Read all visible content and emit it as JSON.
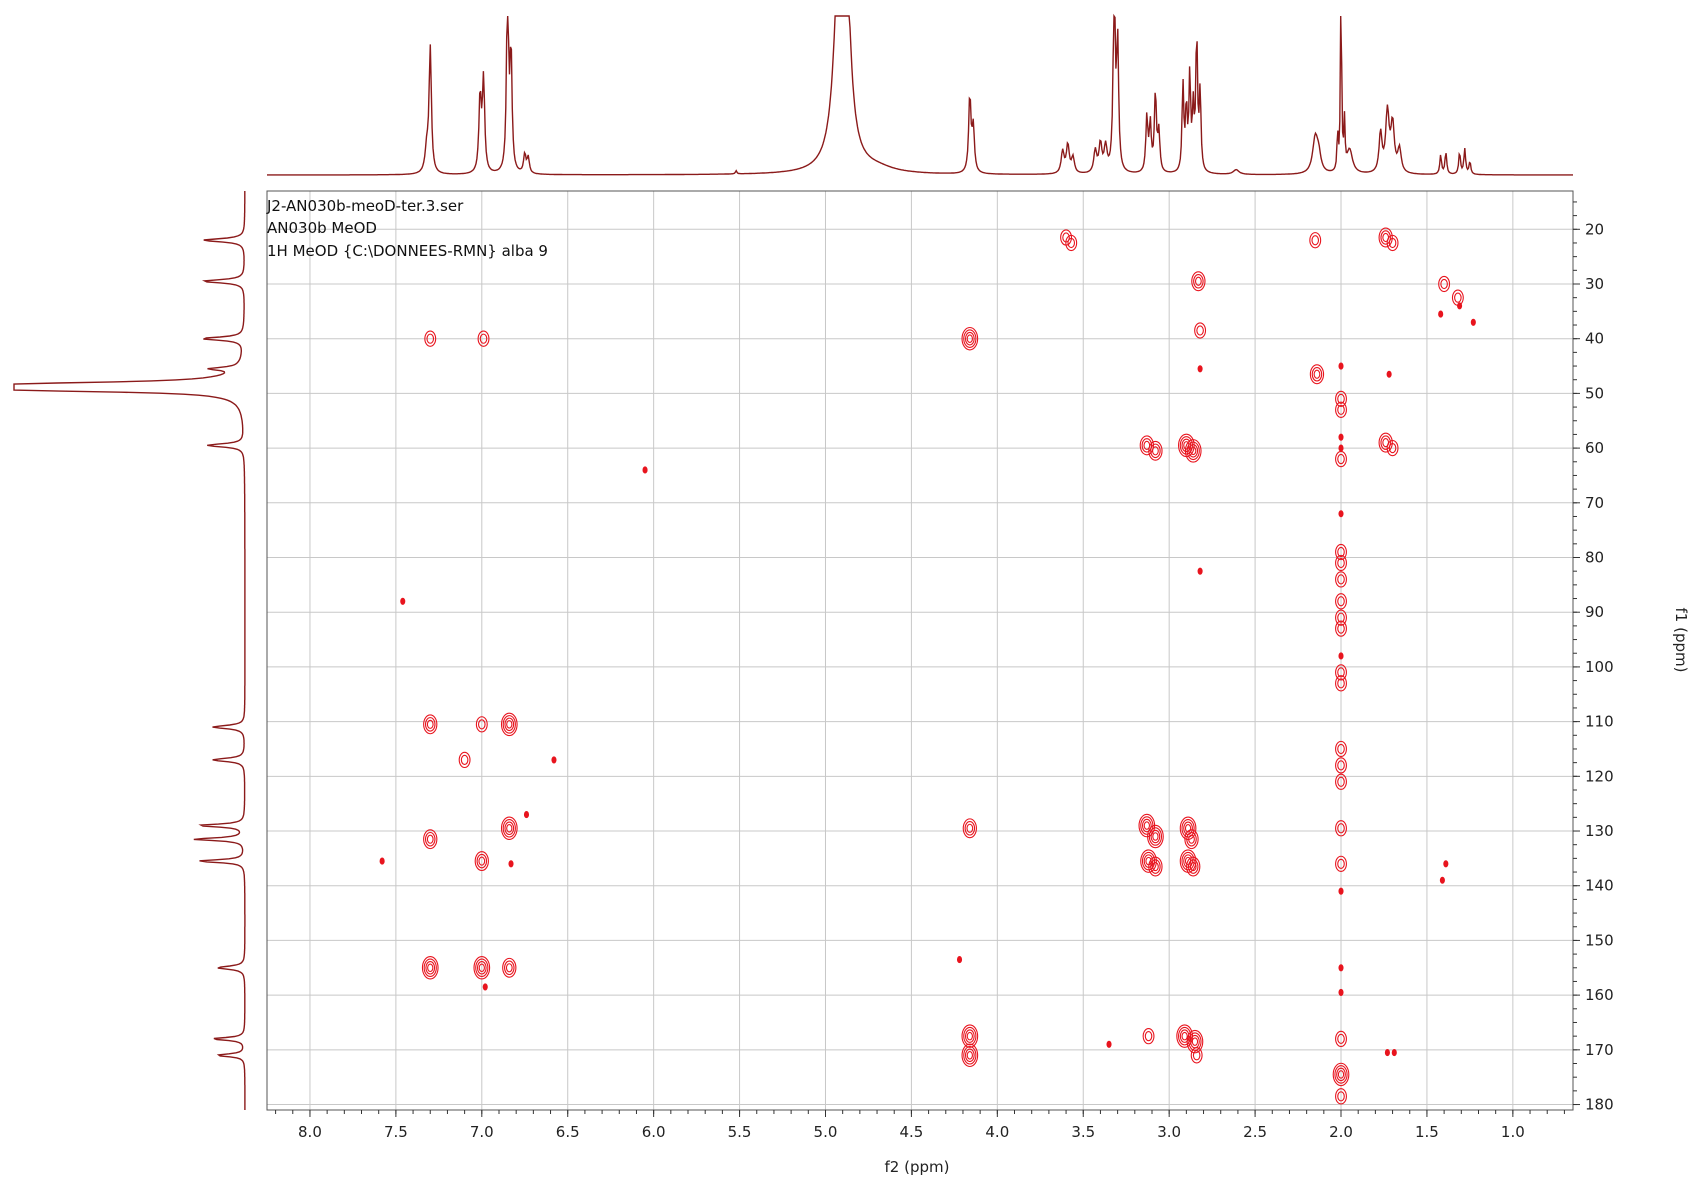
{
  "chart_data": {
    "type": "heatmap",
    "subtype": "2D NMR HMBC contour plot with 1D projections",
    "info_lines": [
      "J2-AN030b-meoD-ter.3.ser",
      "AN030b MeOD",
      "1H MeOD {C:\\DONNEES-RMN} alba 9"
    ],
    "xlabel": "f2 (ppm)",
    "ylabel": "f1 (ppm)",
    "xlim": [
      8.25,
      0.65
    ],
    "ylim": [
      13,
      181
    ],
    "x_ticks": [
      8.0,
      7.5,
      7.0,
      6.5,
      6.0,
      5.5,
      5.0,
      4.5,
      4.0,
      3.5,
      3.0,
      2.5,
      2.0,
      1.5,
      1.0
    ],
    "x_tick_labels": [
      "8.0",
      "7.5",
      "7.0",
      "6.5",
      "6.0",
      "5.5",
      "5.0",
      "4.5",
      "4.0",
      "3.5",
      "3.0",
      "2.5",
      "2.0",
      "1.5",
      "1.0"
    ],
    "y_ticks": [
      20,
      30,
      40,
      50,
      60,
      70,
      80,
      90,
      100,
      110,
      120,
      130,
      140,
      150,
      160,
      170,
      180
    ],
    "y_tick_labels": [
      "20",
      "30",
      "40",
      "50",
      "60",
      "70",
      "80",
      "90",
      "100",
      "110",
      "120",
      "130",
      "140",
      "150",
      "160",
      "170",
      "180"
    ],
    "grid": true,
    "colors": {
      "contour": "#e8141e",
      "projection": "#8b1a1a",
      "grid": "#c8c8c8",
      "frame": "#555555"
    },
    "cross_peaks": [
      {
        "x": 3.6,
        "y": 21.5,
        "i": 2
      },
      {
        "x": 3.57,
        "y": 22.5,
        "i": 2
      },
      {
        "x": 2.15,
        "y": 22,
        "i": 2
      },
      {
        "x": 1.74,
        "y": 21.5,
        "i": 3
      },
      {
        "x": 1.7,
        "y": 22.5,
        "i": 2
      },
      {
        "x": 2.83,
        "y": 29.5,
        "i": 3
      },
      {
        "x": 1.4,
        "y": 30,
        "i": 2
      },
      {
        "x": 1.32,
        "y": 32.5,
        "i": 2
      },
      {
        "x": 1.31,
        "y": 34,
        "i": 1
      },
      {
        "x": 1.42,
        "y": 35.5,
        "i": 1
      },
      {
        "x": 1.23,
        "y": 37,
        "i": 1
      },
      {
        "x": 2.82,
        "y": 38.5,
        "i": 2
      },
      {
        "x": 7.3,
        "y": 40,
        "i": 2
      },
      {
        "x": 6.99,
        "y": 40,
        "i": 2
      },
      {
        "x": 4.16,
        "y": 40,
        "i": 4
      },
      {
        "x": 2.82,
        "y": 45.5,
        "i": 1
      },
      {
        "x": 2.14,
        "y": 46.5,
        "i": 3
      },
      {
        "x": 2.0,
        "y": 45,
        "i": 1
      },
      {
        "x": 1.72,
        "y": 46.5,
        "i": 1
      },
      {
        "x": 2.0,
        "y": 51,
        "i": 2
      },
      {
        "x": 2.0,
        "y": 53,
        "i": 2
      },
      {
        "x": 3.13,
        "y": 59.5,
        "i": 3
      },
      {
        "x": 3.08,
        "y": 60.5,
        "i": 3
      },
      {
        "x": 2.9,
        "y": 59.5,
        "i": 4
      },
      {
        "x": 2.86,
        "y": 60.5,
        "i": 4
      },
      {
        "x": 2.0,
        "y": 58,
        "i": 1
      },
      {
        "x": 2.0,
        "y": 60,
        "i": 1
      },
      {
        "x": 2.0,
        "y": 62,
        "i": 2
      },
      {
        "x": 1.74,
        "y": 59,
        "i": 3
      },
      {
        "x": 1.7,
        "y": 60,
        "i": 2
      },
      {
        "x": 6.05,
        "y": 64,
        "i": 1
      },
      {
        "x": 2.0,
        "y": 72,
        "i": 1
      },
      {
        "x": 2.82,
        "y": 82.5,
        "i": 1
      },
      {
        "x": 2.0,
        "y": 79,
        "i": 2
      },
      {
        "x": 2.0,
        "y": 81,
        "i": 2
      },
      {
        "x": 2.0,
        "y": 84,
        "i": 2
      },
      {
        "x": 2.0,
        "y": 88,
        "i": 2
      },
      {
        "x": 2.0,
        "y": 91,
        "i": 2
      },
      {
        "x": 2.0,
        "y": 93,
        "i": 2
      },
      {
        "x": 2.0,
        "y": 98,
        "i": 1
      },
      {
        "x": 2.0,
        "y": 101,
        "i": 2
      },
      {
        "x": 2.0,
        "y": 103,
        "i": 2
      },
      {
        "x": 7.46,
        "y": 88,
        "i": 1
      },
      {
        "x": 7.3,
        "y": 110.5,
        "i": 3
      },
      {
        "x": 7.0,
        "y": 110.5,
        "i": 2
      },
      {
        "x": 6.84,
        "y": 110.5,
        "i": 4
      },
      {
        "x": 7.1,
        "y": 117,
        "i": 2
      },
      {
        "x": 6.58,
        "y": 117,
        "i": 1
      },
      {
        "x": 2.0,
        "y": 115,
        "i": 2
      },
      {
        "x": 2.0,
        "y": 118,
        "i": 2
      },
      {
        "x": 2.0,
        "y": 121,
        "i": 2
      },
      {
        "x": 6.74,
        "y": 127,
        "i": 1
      },
      {
        "x": 6.84,
        "y": 129.5,
        "i": 4
      },
      {
        "x": 4.16,
        "y": 129.5,
        "i": 3
      },
      {
        "x": 3.13,
        "y": 129,
        "i": 4
      },
      {
        "x": 3.08,
        "y": 131,
        "i": 4
      },
      {
        "x": 2.89,
        "y": 129.5,
        "i": 4
      },
      {
        "x": 2.87,
        "y": 131.5,
        "i": 3
      },
      {
        "x": 2.0,
        "y": 129.5,
        "i": 2
      },
      {
        "x": 7.3,
        "y": 131.5,
        "i": 3
      },
      {
        "x": 7.58,
        "y": 135.5,
        "i": 1
      },
      {
        "x": 7.0,
        "y": 135.5,
        "i": 3
      },
      {
        "x": 6.83,
        "y": 136,
        "i": 1
      },
      {
        "x": 3.12,
        "y": 135.5,
        "i": 4
      },
      {
        "x": 3.08,
        "y": 136.5,
        "i": 3
      },
      {
        "x": 2.89,
        "y": 135.5,
        "i": 4
      },
      {
        "x": 2.86,
        "y": 136.5,
        "i": 3
      },
      {
        "x": 2.0,
        "y": 136,
        "i": 2
      },
      {
        "x": 2.0,
        "y": 141,
        "i": 1
      },
      {
        "x": 1.39,
        "y": 136,
        "i": 1
      },
      {
        "x": 1.41,
        "y": 139,
        "i": 1
      },
      {
        "x": 4.22,
        "y": 153.5,
        "i": 1
      },
      {
        "x": 7.3,
        "y": 155,
        "i": 4
      },
      {
        "x": 7.0,
        "y": 155,
        "i": 4
      },
      {
        "x": 6.84,
        "y": 155,
        "i": 3
      },
      {
        "x": 6.98,
        "y": 158.5,
        "i": 1
      },
      {
        "x": 2.0,
        "y": 155,
        "i": 1
      },
      {
        "x": 2.0,
        "y": 159.5,
        "i": 1
      },
      {
        "x": 4.16,
        "y": 167.5,
        "i": 4
      },
      {
        "x": 4.16,
        "y": 171,
        "i": 4
      },
      {
        "x": 3.35,
        "y": 169,
        "i": 1
      },
      {
        "x": 3.12,
        "y": 167.5,
        "i": 2
      },
      {
        "x": 2.91,
        "y": 167.5,
        "i": 4
      },
      {
        "x": 2.85,
        "y": 168.5,
        "i": 4
      },
      {
        "x": 2.84,
        "y": 171,
        "i": 2
      },
      {
        "x": 2.0,
        "y": 168,
        "i": 2
      },
      {
        "x": 1.73,
        "y": 170.5,
        "i": 1
      },
      {
        "x": 1.69,
        "y": 170.5,
        "i": 1
      },
      {
        "x": 2.0,
        "y": 174.5,
        "i": 4
      },
      {
        "x": 2.0,
        "y": 178.5,
        "i": 2
      }
    ],
    "projection_f2_peaks": [
      {
        "x": 7.32,
        "w": 0.012,
        "h": 0.15
      },
      {
        "x": 7.3,
        "w": 0.008,
        "h": 0.78
      },
      {
        "x": 7.01,
        "w": 0.008,
        "h": 0.48
      },
      {
        "x": 6.99,
        "w": 0.008,
        "h": 0.58
      },
      {
        "x": 6.85,
        "w": 0.007,
        "h": 1.2
      },
      {
        "x": 6.83,
        "w": 0.007,
        "h": 0.75
      },
      {
        "x": 6.75,
        "w": 0.008,
        "h": 0.12
      },
      {
        "x": 6.73,
        "w": 0.008,
        "h": 0.1
      },
      {
        "x": 5.52,
        "w": 0.005,
        "h": 0.02
      },
      {
        "x": 4.92,
        "w": 0.035,
        "h": 1.2
      },
      {
        "x": 4.88,
        "w": 0.03,
        "h": 1.0
      },
      {
        "x": 4.7,
        "w": 0.12,
        "h": 0.03
      },
      {
        "x": 4.16,
        "w": 0.008,
        "h": 0.48
      },
      {
        "x": 4.14,
        "w": 0.008,
        "h": 0.28
      },
      {
        "x": 3.62,
        "w": 0.01,
        "h": 0.14
      },
      {
        "x": 3.59,
        "w": 0.01,
        "h": 0.18
      },
      {
        "x": 3.56,
        "w": 0.01,
        "h": 0.1
      },
      {
        "x": 3.43,
        "w": 0.01,
        "h": 0.14
      },
      {
        "x": 3.4,
        "w": 0.01,
        "h": 0.18
      },
      {
        "x": 3.37,
        "w": 0.01,
        "h": 0.16
      },
      {
        "x": 3.32,
        "w": 0.007,
        "h": 1.2
      },
      {
        "x": 3.3,
        "w": 0.007,
        "h": 0.8
      },
      {
        "x": 3.13,
        "w": 0.007,
        "h": 0.35
      },
      {
        "x": 3.11,
        "w": 0.007,
        "h": 0.3
      },
      {
        "x": 3.08,
        "w": 0.007,
        "h": 0.5
      },
      {
        "x": 3.06,
        "w": 0.007,
        "h": 0.25
      },
      {
        "x": 2.92,
        "w": 0.006,
        "h": 0.55
      },
      {
        "x": 2.9,
        "w": 0.006,
        "h": 0.4
      },
      {
        "x": 2.88,
        "w": 0.006,
        "h": 0.6
      },
      {
        "x": 2.86,
        "w": 0.006,
        "h": 0.38
      },
      {
        "x": 2.84,
        "w": 0.006,
        "h": 0.85
      },
      {
        "x": 2.82,
        "w": 0.006,
        "h": 0.5
      },
      {
        "x": 2.61,
        "w": 0.02,
        "h": 0.03
      },
      {
        "x": 2.15,
        "w": 0.018,
        "h": 0.22
      },
      {
        "x": 2.13,
        "w": 0.015,
        "h": 0.1
      },
      {
        "x": 2.02,
        "w": 0.004,
        "h": 0.25
      },
      {
        "x": 2.0,
        "w": 0.004,
        "h": 1.2
      },
      {
        "x": 1.98,
        "w": 0.004,
        "h": 0.3
      },
      {
        "x": 1.95,
        "w": 0.02,
        "h": 0.15
      },
      {
        "x": 1.77,
        "w": 0.01,
        "h": 0.25
      },
      {
        "x": 1.73,
        "w": 0.012,
        "h": 0.38
      },
      {
        "x": 1.7,
        "w": 0.012,
        "h": 0.3
      },
      {
        "x": 1.66,
        "w": 0.012,
        "h": 0.15
      },
      {
        "x": 1.42,
        "w": 0.006,
        "h": 0.12
      },
      {
        "x": 1.39,
        "w": 0.006,
        "h": 0.14
      },
      {
        "x": 1.31,
        "w": 0.006,
        "h": 0.14
      },
      {
        "x": 1.28,
        "w": 0.006,
        "h": 0.16
      },
      {
        "x": 1.25,
        "w": 0.006,
        "h": 0.08
      }
    ],
    "projection_f1_peaks": [
      {
        "y": 22,
        "w": 0.35,
        "h": 0.18
      },
      {
        "y": 29.5,
        "w": 0.35,
        "h": 0.18
      },
      {
        "y": 40,
        "w": 0.35,
        "h": 0.18
      },
      {
        "y": 45.5,
        "w": 0.3,
        "h": 0.12
      },
      {
        "y": 48.5,
        "w": 0.5,
        "h": 1.2
      },
      {
        "y": 49.3,
        "w": 0.4,
        "h": 0.9
      },
      {
        "y": 59.5,
        "w": 0.35,
        "h": 0.16
      },
      {
        "y": 111,
        "w": 0.35,
        "h": 0.14
      },
      {
        "y": 117,
        "w": 0.35,
        "h": 0.14
      },
      {
        "y": 129,
        "w": 0.3,
        "h": 0.2
      },
      {
        "y": 131.5,
        "w": 0.3,
        "h": 0.22
      },
      {
        "y": 135.5,
        "w": 0.3,
        "h": 0.2
      },
      {
        "y": 155,
        "w": 0.35,
        "h": 0.12
      },
      {
        "y": 168,
        "w": 0.3,
        "h": 0.14
      },
      {
        "y": 171,
        "w": 0.3,
        "h": 0.12
      }
    ]
  }
}
